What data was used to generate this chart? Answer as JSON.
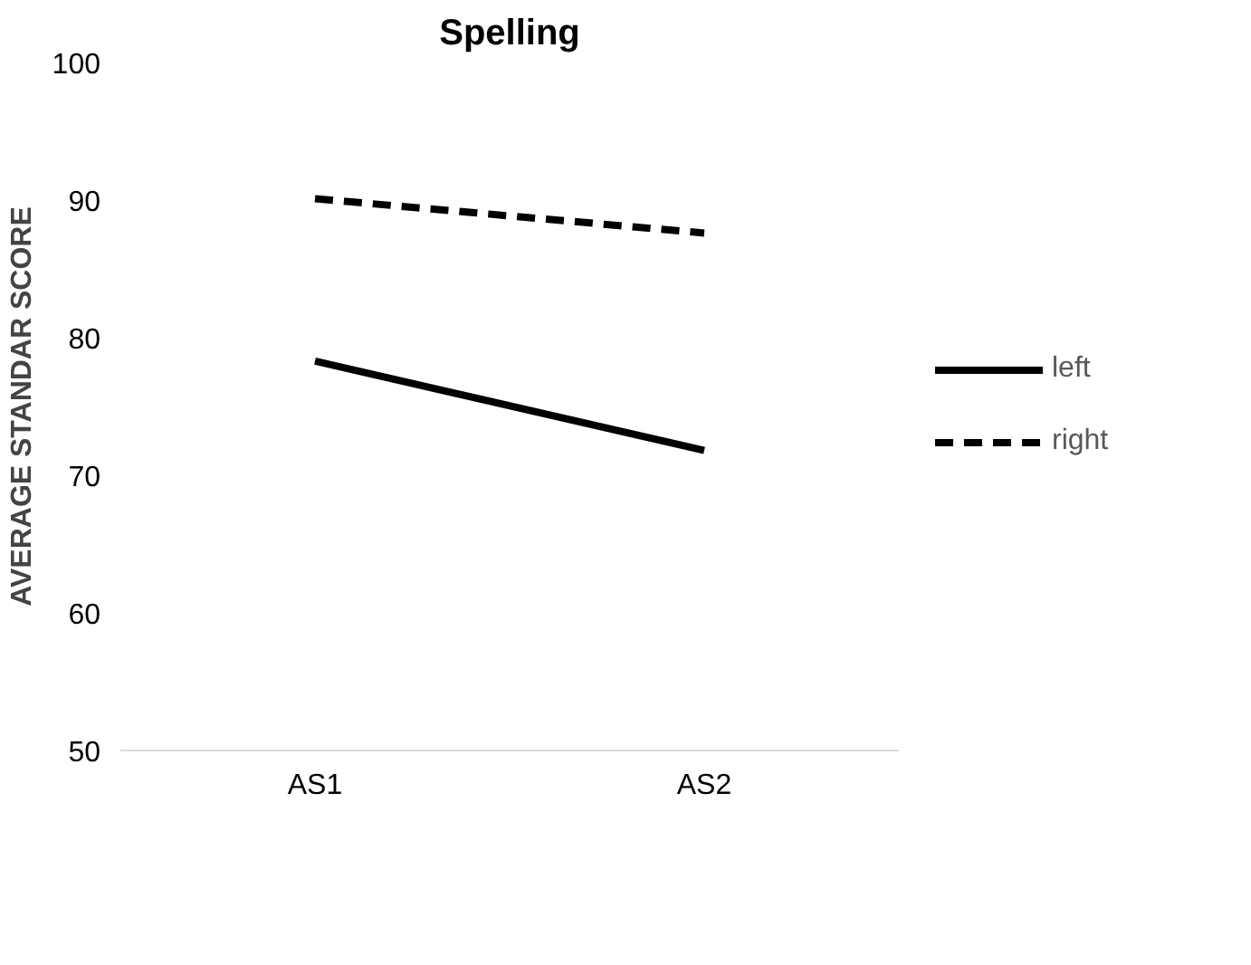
{
  "chart_data": {
    "type": "line",
    "title": "Spelling",
    "ylabel": "AVERAGE STANDAR SCORE",
    "categories": [
      "AS1",
      "AS2"
    ],
    "ylim": [
      50,
      100
    ],
    "yticks": [
      50,
      60,
      70,
      80,
      90,
      100
    ],
    "grid": false,
    "legend": "right",
    "marker": "none",
    "series": [
      {
        "name": "left",
        "color": "#000000",
        "values": [
          78.3,
          71.8
        ],
        "line_style": "solid"
      },
      {
        "name": "right",
        "color": "#000000",
        "values": [
          90.1,
          87.6
        ],
        "line_style": "dashed"
      }
    ]
  }
}
